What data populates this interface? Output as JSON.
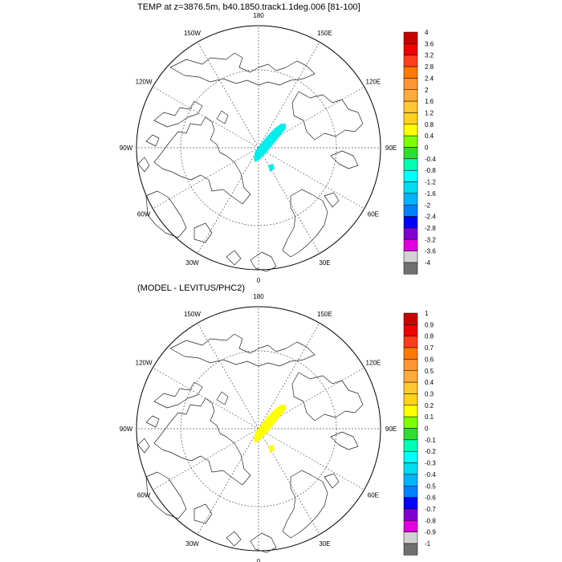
{
  "maps": [
    {
      "title": "TEMP at z=3876.5m, b40.1850.track1.1deg.006 [81-100]",
      "longitude_labels": [
        "180",
        "150E",
        "120E",
        "90E",
        "60E",
        "30E",
        "0",
        "30W",
        "60W",
        "90W",
        "120W",
        "150W"
      ],
      "anomaly_fill_color": "#00eeee",
      "colorbar": {
        "levels": [
          "4",
          "3.6",
          "3.2",
          "2.8",
          "2.4",
          "2",
          "1.6",
          "1.2",
          "0.8",
          "0.4",
          "0",
          "-0.4",
          "-0.8",
          "-1.2",
          "-1.6",
          "-2",
          "-2.4",
          "-2.8",
          "-3.2",
          "-3.6",
          "-4"
        ],
        "colors": [
          "#c80000",
          "#f00000",
          "#ff3c1e",
          "#ff7800",
          "#ff9632",
          "#ffaa3c",
          "#ffc832",
          "#ffd21e",
          "#ffff00",
          "#80ff00",
          "#32dc32",
          "#00ffb4",
          "#00ffff",
          "#00dcf0",
          "#00b4ff",
          "#0082ff",
          "#0000ff",
          "#8000d0",
          "#e000e0",
          "#d2d2d2",
          "#707070"
        ]
      }
    },
    {
      "title": "(MODEL - LEVITUS/PHC2)",
      "longitude_labels": [
        "180",
        "150E",
        "120E",
        "90E",
        "60E",
        "30E",
        "0",
        "30W",
        "60W",
        "90W",
        "120W",
        "150W"
      ],
      "anomaly_fill_color": "#ffff00",
      "colorbar": {
        "levels": [
          "1",
          "0.9",
          "0.8",
          "0.7",
          "0.6",
          "0.5",
          "0.4",
          "0.3",
          "0.2",
          "0.1",
          "0",
          "-0.1",
          "-0.2",
          "-0.3",
          "-0.4",
          "-0.5",
          "-0.6",
          "-0.7",
          "-0.8",
          "-0.9",
          "-1"
        ],
        "colors": [
          "#c80000",
          "#f00000",
          "#ff3c1e",
          "#ff7800",
          "#ff9632",
          "#ffaa3c",
          "#ffc832",
          "#ffd21e",
          "#ffff00",
          "#80ff00",
          "#32dc32",
          "#00ffb4",
          "#00ffff",
          "#00dcf0",
          "#00b4ff",
          "#0082ff",
          "#0000ff",
          "#8000d0",
          "#e000e0",
          "#d2d2d2",
          "#707070"
        ]
      }
    }
  ]
}
